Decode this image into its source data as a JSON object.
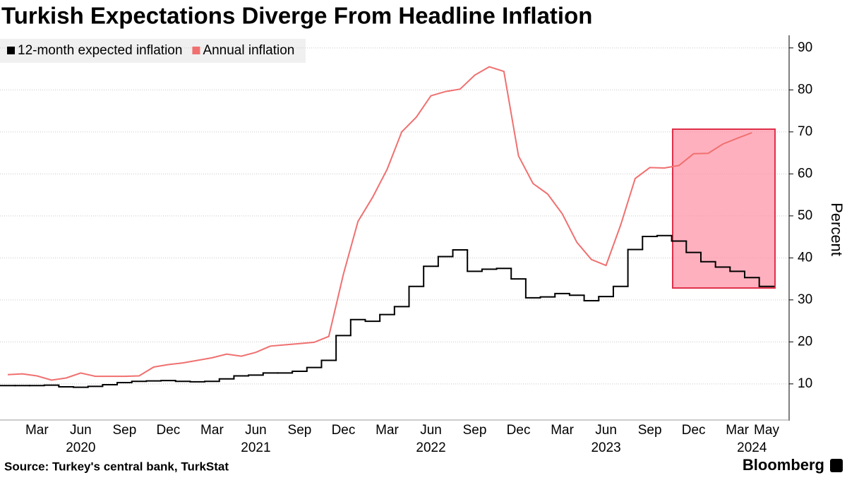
{
  "chart_data": {
    "type": "line",
    "title": "Turkish Expectations Diverge From Headline Inflation",
    "source": "Source: Turkey's central bank, TurkStat",
    "brand": "Bloomberg",
    "ylabel": "Percent",
    "x": [
      "2020-01",
      "2020-02",
      "2020-03",
      "2020-04",
      "2020-05",
      "2020-06",
      "2020-07",
      "2020-08",
      "2020-09",
      "2020-10",
      "2020-11",
      "2020-12",
      "2021-01",
      "2021-02",
      "2021-03",
      "2021-04",
      "2021-05",
      "2021-06",
      "2021-07",
      "2021-08",
      "2021-09",
      "2021-10",
      "2021-11",
      "2021-12",
      "2022-01",
      "2022-02",
      "2022-03",
      "2022-04",
      "2022-05",
      "2022-06",
      "2022-07",
      "2022-08",
      "2022-09",
      "2022-10",
      "2022-11",
      "2022-12",
      "2023-01",
      "2023-02",
      "2023-03",
      "2023-04",
      "2023-05",
      "2023-06",
      "2023-07",
      "2023-08",
      "2023-09",
      "2023-10",
      "2023-11",
      "2023-12",
      "2024-01",
      "2024-02",
      "2024-03",
      "2024-04",
      "2024-05"
    ],
    "series": [
      {
        "name": "12-month expected inflation",
        "color": "#000000",
        "step": true,
        "values": [
          9.6,
          9.6,
          9.6,
          9.7,
          9.3,
          9.2,
          9.4,
          9.8,
          10.3,
          10.6,
          10.7,
          10.8,
          10.6,
          10.5,
          10.6,
          11.2,
          11.9,
          12.1,
          12.6,
          12.6,
          13.0,
          13.9,
          15.6,
          21.5,
          25.3,
          24.9,
          26.5,
          28.4,
          33.2,
          38.0,
          40.3,
          41.9,
          36.8,
          37.3,
          37.5,
          35.0,
          30.5,
          30.7,
          31.5,
          31.1,
          29.8,
          30.8,
          33.2,
          42.0,
          45.1,
          45.3,
          44.0,
          41.3,
          39.1,
          37.8,
          36.8,
          35.3,
          33.2
        ]
      },
      {
        "name": "Annual inflation",
        "color": "#f07070",
        "step": false,
        "values": [
          12.2,
          12.4,
          11.9,
          10.9,
          11.4,
          12.6,
          11.8,
          11.8,
          11.8,
          11.9,
          14.0,
          14.6,
          15.0,
          15.6,
          16.2,
          17.1,
          16.6,
          17.5,
          19.0,
          19.3,
          19.6,
          19.9,
          21.3,
          36.1,
          48.7,
          54.4,
          61.1,
          70.0,
          73.5,
          78.6,
          79.6,
          80.2,
          83.5,
          85.5,
          84.4,
          64.3,
          57.7,
          55.2,
          50.5,
          43.7,
          39.6,
          38.2,
          47.8,
          58.9,
          61.5,
          61.4,
          62.0,
          64.8,
          64.9,
          67.1,
          68.5,
          69.8,
          null
        ]
      }
    ],
    "xlim": [
      "2020-01",
      "2024-05"
    ],
    "xticks": [
      {
        "value": "2020-03",
        "label": "Mar"
      },
      {
        "value": "2020-06",
        "label": "Jun"
      },
      {
        "value": "2020-09",
        "label": "Sep"
      },
      {
        "value": "2020-12",
        "label": "Dec"
      },
      {
        "value": "2021-03",
        "label": "Mar"
      },
      {
        "value": "2021-06",
        "label": "Jun"
      },
      {
        "value": "2021-09",
        "label": "Sep"
      },
      {
        "value": "2021-12",
        "label": "Dec"
      },
      {
        "value": "2022-03",
        "label": "Mar"
      },
      {
        "value": "2022-06",
        "label": "Jun"
      },
      {
        "value": "2022-09",
        "label": "Sep"
      },
      {
        "value": "2022-12",
        "label": "Dec"
      },
      {
        "value": "2023-03",
        "label": "Mar"
      },
      {
        "value": "2023-06",
        "label": "Jun"
      },
      {
        "value": "2023-09",
        "label": "Sep"
      },
      {
        "value": "2023-12",
        "label": "Dec"
      },
      {
        "value": "2024-03",
        "label": "Mar"
      },
      {
        "value": "2024-05",
        "label": "May"
      }
    ],
    "xyears": [
      {
        "value": "2020-06",
        "label": "2020"
      },
      {
        "value": "2021-06",
        "label": "2021"
      },
      {
        "value": "2022-06",
        "label": "2022"
      },
      {
        "value": "2023-06",
        "label": "2023"
      },
      {
        "value": "2024-04",
        "label": "2024"
      }
    ],
    "ylim": [
      1.4,
      93
    ],
    "yticks": [
      10,
      20,
      30,
      40,
      50,
      60,
      70,
      80,
      90
    ],
    "grid": true
  }
}
